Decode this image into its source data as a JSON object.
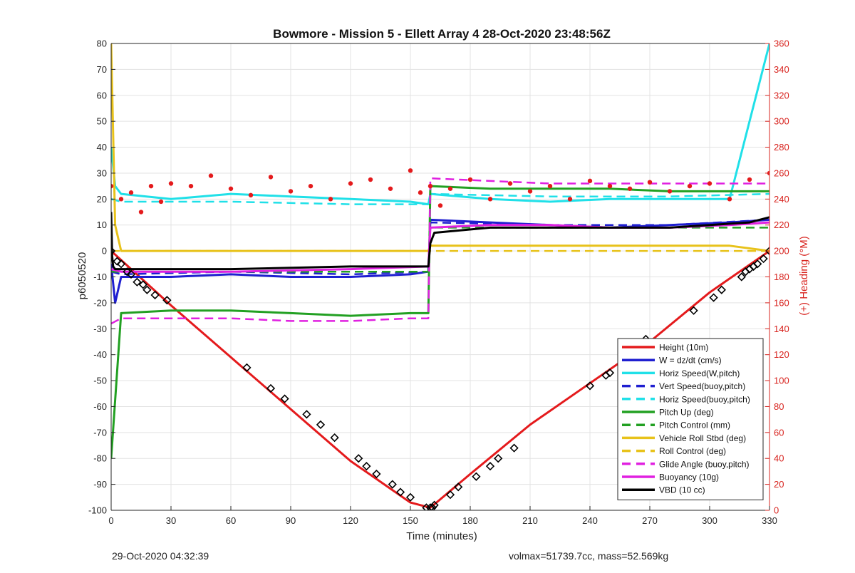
{
  "chart_data": {
    "type": "line",
    "title": "Bowmore - Mission 5 - Ellett Array 4 28-Oct-2020 23:48:56Z",
    "xlabel": "Time (minutes)",
    "ylabel": "p6050520",
    "y2label": "(+) Heading (°M)",
    "xlim": [
      0,
      330
    ],
    "ylim": [
      -100,
      80
    ],
    "y2lim": [
      0,
      360
    ],
    "xticks": [
      "0",
      "30",
      "60",
      "90",
      "120",
      "150",
      "180",
      "210",
      "240",
      "270",
      "300",
      "330"
    ],
    "yticks": [
      "80",
      "70",
      "60",
      "50",
      "40",
      "30",
      "20",
      "10",
      "0",
      "-10",
      "-20",
      "-30",
      "-40",
      "-50",
      "-60",
      "-70",
      "-80",
      "-90",
      "-100"
    ],
    "y2ticks": [
      "360",
      "340",
      "320",
      "300",
      "280",
      "260",
      "240",
      "220",
      "200",
      "180",
      "160",
      "140",
      "120",
      "100",
      "80",
      "60",
      "40",
      "20",
      "0"
    ],
    "grid": true,
    "legend_position": "bottom-right",
    "series": [
      {
        "name": "Height (10m)",
        "color": "#e41a1c",
        "style": "solid",
        "x": [
          0,
          30,
          60,
          90,
          120,
          150,
          160,
          180,
          210,
          240,
          270,
          300,
          330
        ],
        "values": [
          0,
          -21,
          -41,
          -61,
          -81,
          -97,
          -99,
          -86,
          -67,
          -51,
          -35,
          -16,
          0
        ]
      },
      {
        "name": "W = dz/dt (cm/s)",
        "color": "#1f1fd0",
        "style": "solid",
        "x": [
          0,
          2,
          5,
          30,
          60,
          90,
          120,
          150,
          159,
          160,
          190,
          220,
          250,
          280,
          310,
          330
        ],
        "values": [
          -5,
          -20,
          -10,
          -10,
          -9,
          -10,
          -10,
          -9,
          -8,
          12,
          11,
          10,
          9,
          10,
          11,
          12
        ]
      },
      {
        "name": "Horiz Speed(W,pitch)",
        "color": "#20e0e8",
        "style": "solid",
        "x": [
          0,
          2,
          5,
          30,
          60,
          90,
          120,
          150,
          159,
          160,
          190,
          220,
          250,
          280,
          310,
          330
        ],
        "values": [
          40,
          25,
          22,
          20,
          22,
          21,
          20,
          19,
          18,
          22,
          20,
          19,
          20,
          20,
          20,
          80
        ]
      },
      {
        "name": "Vert Speed(buoy,pitch)",
        "color": "#1f1fd0",
        "style": "dashed",
        "x": [
          0,
          5,
          60,
          120,
          159,
          160,
          220,
          280,
          330
        ],
        "values": [
          -8,
          -9,
          -8,
          -9,
          -8,
          11,
          10,
          10,
          12
        ]
      },
      {
        "name": "Horiz Speed(buoy,pitch)",
        "color": "#20e0e8",
        "style": "dashed",
        "x": [
          0,
          5,
          60,
          120,
          159,
          160,
          220,
          280,
          330
        ],
        "values": [
          20,
          19,
          19,
          18,
          18,
          22,
          21,
          21,
          22
        ]
      },
      {
        "name": "Pitch Up (deg)",
        "color": "#22a022",
        "style": "solid",
        "x": [
          0,
          5,
          30,
          60,
          90,
          120,
          150,
          159,
          160,
          190,
          220,
          250,
          280,
          310,
          330
        ],
        "values": [
          -80,
          -24,
          -23,
          -23,
          -24,
          -25,
          -24,
          -24,
          25,
          24,
          24,
          24,
          23,
          23,
          23
        ]
      },
      {
        "name": "Pitch Control (mm)",
        "color": "#22a022",
        "style": "dashed",
        "x": [
          0,
          5,
          60,
          120,
          159,
          160,
          220,
          280,
          330
        ],
        "values": [
          -8,
          -8,
          -8,
          -8,
          -8,
          9,
          9,
          9,
          9
        ]
      },
      {
        "name": "Vehicle Roll Stbd (deg)",
        "color": "#e8c21a",
        "style": "solid",
        "x": [
          0,
          2,
          5,
          30,
          60,
          90,
          120,
          150,
          159,
          160,
          190,
          220,
          250,
          280,
          310,
          330
        ],
        "values": [
          80,
          10,
          0,
          0,
          0,
          0,
          0,
          0,
          0,
          2,
          2,
          2,
          2,
          2,
          2,
          0
        ]
      },
      {
        "name": "Roll Control (deg)",
        "color": "#e8c21a",
        "style": "dashed",
        "x": [
          0,
          5,
          60,
          120,
          159,
          160,
          220,
          280,
          330
        ],
        "values": [
          0,
          0,
          0,
          0,
          0,
          0,
          0,
          0,
          0
        ]
      },
      {
        "name": "Glide Angle (buoy,pitch)",
        "color": "#e020e0",
        "style": "dashed",
        "x": [
          0,
          5,
          30,
          60,
          90,
          120,
          150,
          159,
          160,
          190,
          220,
          250,
          280,
          310,
          330
        ],
        "values": [
          -28,
          -26,
          -26,
          -26,
          -27,
          -27,
          -26,
          -26,
          28,
          27,
          26,
          26,
          26,
          26,
          26
        ]
      },
      {
        "name": "Buoyancy (10g)",
        "color": "#e020e0",
        "style": "solid",
        "x": [
          0,
          5,
          60,
          120,
          159,
          160,
          190,
          220,
          250,
          280,
          310,
          330
        ],
        "values": [
          -7,
          -8,
          -8,
          -7,
          -6,
          9,
          10,
          10,
          9,
          9,
          10,
          11
        ]
      },
      {
        "name": "VBD (10 cc)",
        "color": "#000000",
        "style": "solid",
        "x": [
          0,
          0.5,
          1,
          2,
          5,
          60,
          120,
          159,
          160,
          162,
          190,
          220,
          250,
          280,
          300,
          320,
          330
        ],
        "values": [
          15,
          -2,
          -6,
          -7,
          -7,
          -7,
          -6,
          -6,
          3,
          7,
          9,
          9,
          9,
          9,
          10,
          11,
          13
        ]
      }
    ],
    "heading_series": {
      "name": "Heading",
      "color": "#e41a1c",
      "style": "dotted",
      "x": [
        0,
        5,
        10,
        15,
        20,
        25,
        30,
        40,
        50,
        60,
        70,
        80,
        90,
        100,
        110,
        120,
        130,
        140,
        150,
        155,
        160,
        165,
        170,
        180,
        190,
        200,
        210,
        220,
        230,
        240,
        250,
        260,
        270,
        280,
        290,
        300,
        310,
        320,
        330
      ],
      "values": [
        250,
        240,
        245,
        230,
        250,
        238,
        252,
        250,
        258,
        248,
        243,
        257,
        246,
        250,
        240,
        252,
        255,
        248,
        262,
        245,
        250,
        235,
        248,
        255,
        240,
        252,
        246,
        250,
        240,
        254,
        250,
        248,
        253,
        246,
        250,
        252,
        240,
        255,
        260
      ]
    },
    "markers": {
      "shape": "diamond",
      "color": "#000000",
      "x": [
        0,
        3,
        5,
        8,
        10,
        13,
        16,
        18,
        22,
        28,
        68,
        80,
        87,
        98,
        105,
        112,
        124,
        128,
        133,
        141,
        145,
        150,
        158,
        160,
        161,
        162,
        170,
        174,
        183,
        190,
        194,
        202,
        240,
        248,
        250,
        265,
        268,
        292,
        302,
        306,
        316,
        318,
        320,
        322,
        324,
        327,
        330
      ],
      "values": [
        0,
        -4,
        -5,
        -8,
        -9,
        -12,
        -13,
        -15,
        -17,
        -19,
        -45,
        -53,
        -57,
        -63,
        -67,
        -72,
        -80,
        -83,
        -86,
        -90,
        -93,
        -95,
        -99,
        -99,
        -99,
        -98,
        -94,
        -91,
        -87,
        -83,
        -80,
        -76,
        -52,
        -48,
        -47,
        -37,
        -34,
        -23,
        -18,
        -15,
        -10,
        -8,
        -7,
        -6,
        -5,
        -3,
        0
      ]
    }
  },
  "footer": {
    "left_text": "29-Oct-2020 04:32:39",
    "right_text": "volmax=51739.7cc, mass=52.569kg"
  }
}
